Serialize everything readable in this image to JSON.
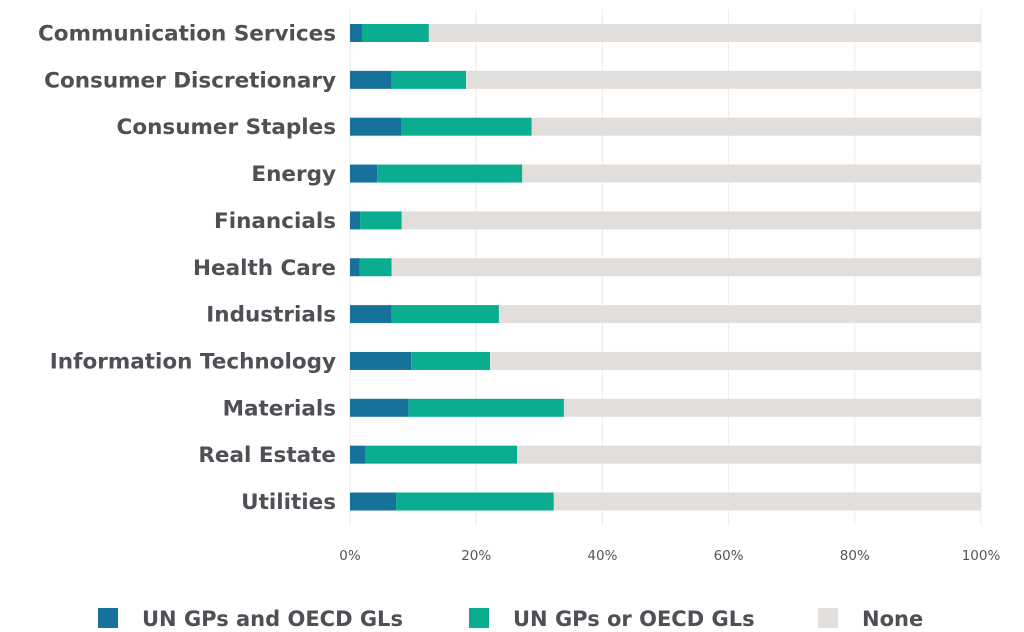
{
  "chart_data": {
    "type": "bar",
    "orientation": "horizontal",
    "stacked": true,
    "title": "",
    "xlabel": "",
    "ylabel": "",
    "xlim": [
      0,
      100
    ],
    "x_ticks": [
      0,
      20,
      40,
      60,
      80,
      100
    ],
    "x_tick_labels": [
      "0%",
      "20%",
      "40%",
      "60%",
      "80%",
      "100%"
    ],
    "grid": "vertical",
    "legend_position": "bottom",
    "categories": [
      "Communication Services",
      "Consumer Discretionary",
      "Consumer Staples",
      "Energy",
      "Financials",
      "Health Care",
      "Industrials",
      "Information Technology",
      "Materials",
      "Real Estate",
      "Utilities"
    ],
    "series": [
      {
        "name": "UN GPs and OECD GLs",
        "color": "#17729b",
        "values": [
          1.9,
          6.6,
          8.2,
          4.3,
          1.6,
          1.5,
          6.6,
          9.7,
          9.3,
          2.5,
          7.3
        ]
      },
      {
        "name": "UN GPs or OECD GLs",
        "color": "#0aad8f",
        "values": [
          10.6,
          11.8,
          20.6,
          23.0,
          6.6,
          5.1,
          17.0,
          12.5,
          24.6,
          24.0,
          25.0
        ]
      },
      {
        "name": "None",
        "color": "#e1dedc",
        "values": [
          87.5,
          81.6,
          71.2,
          72.7,
          91.8,
          93.4,
          76.4,
          77.8,
          66.1,
          73.5,
          67.7
        ]
      }
    ]
  }
}
